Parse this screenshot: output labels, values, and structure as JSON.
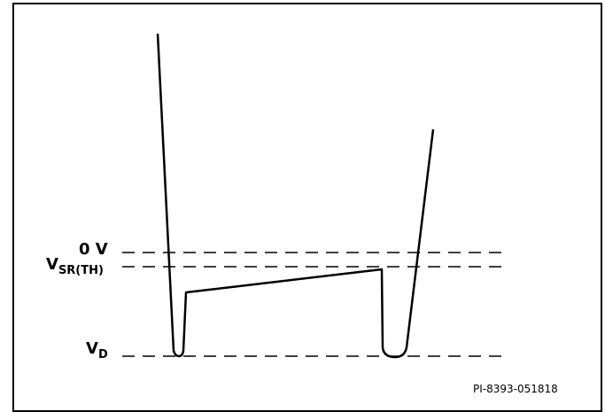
{
  "labels": {
    "zero_v": "0 V",
    "vsr_main": "V",
    "vsr_sub": "SR(TH)",
    "vd_main": "V",
    "vd_sub": "D"
  },
  "figure_id": "PI-8393-051818",
  "colors": {
    "line": "#000000",
    "background": "#ffffff"
  }
}
